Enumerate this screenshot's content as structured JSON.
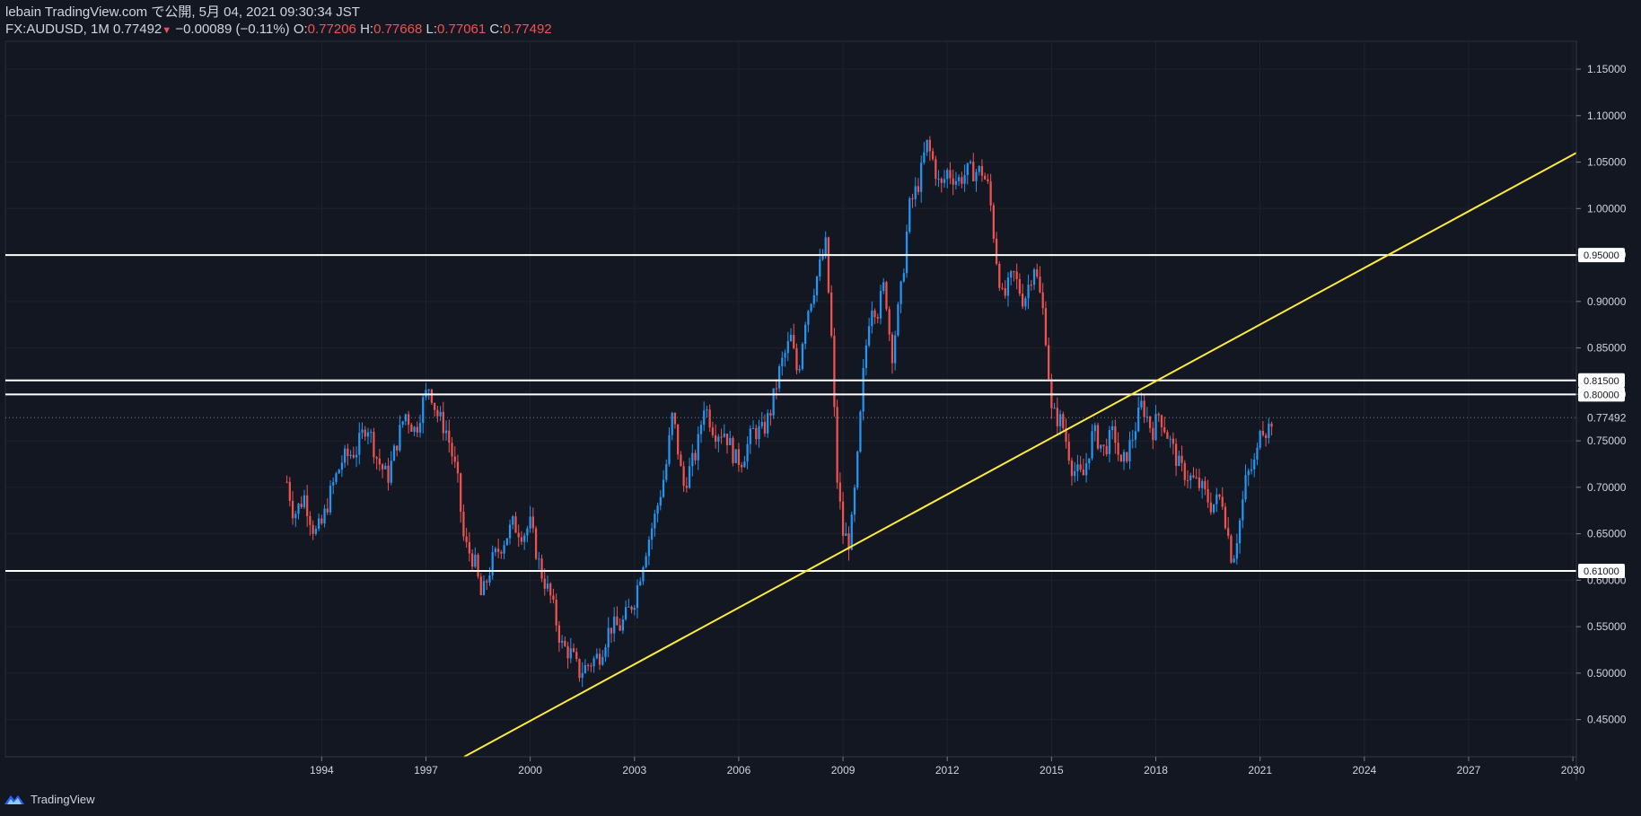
{
  "header": {
    "publish_line": "lebain TradingView.com で公開, 5月 04, 2021 09:30:34 JST",
    "symbol": "FX:AUDUSD, 1M",
    "last": "0.77492",
    "down_arrow": "▼",
    "change": "−0.00089 (−0.11%)",
    "open_label": "O:",
    "open": "0.77206",
    "high_label": "H:",
    "high": "0.77668",
    "low_label": "L:",
    "low": "0.77061",
    "close_label": "C:",
    "close": "0.77492"
  },
  "footer": {
    "brand": "TradingView",
    "logo_icon": "tradingview-logo-icon"
  },
  "colors": {
    "background": "#131722",
    "up": "#2196f3",
    "down": "#ef5350",
    "trendline": "#ffeb3b",
    "hline": "#ffffff",
    "text": "#d1d4dc"
  },
  "chart_data": {
    "type": "candlestick",
    "symbol": "FX:AUDUSD",
    "interval": "1M",
    "x_ticks": [
      "1994",
      "1997",
      "2000",
      "2003",
      "2006",
      "2009",
      "2012",
      "2015",
      "2018",
      "2021",
      "2024",
      "2027",
      "2030"
    ],
    "y_ticks": [
      "1.15000",
      "1.10000",
      "1.05000",
      "1.00000",
      "0.95000",
      "0.90000",
      "0.85000",
      "0.80000",
      "0.75000",
      "0.70000",
      "0.65000",
      "0.60000",
      "0.55000",
      "0.50000",
      "0.45000"
    ],
    "ylim": [
      0.41,
      1.18
    ],
    "xlim": [
      1984.9,
      2030.1
    ],
    "horizontal_levels": [
      {
        "value": 0.95,
        "label": "0.95000"
      },
      {
        "value": 0.815,
        "label": "0.81500"
      },
      {
        "value": 0.8,
        "label": "0.80000"
      },
      {
        "value": 0.61,
        "label": "0.61000"
      }
    ],
    "current_price": {
      "value": 0.77492,
      "label": "0.77492"
    },
    "trendline": {
      "from": {
        "year": 1998.1,
        "price": 0.41
      },
      "to": {
        "year": 2030.1,
        "price": 1.06
      }
    },
    "price_path": [
      [
        1993.0,
        0.706
      ],
      [
        1993.2,
        0.67
      ],
      [
        1993.5,
        0.69
      ],
      [
        1993.8,
        0.65
      ],
      [
        1994.0,
        0.66
      ],
      [
        1994.3,
        0.7
      ],
      [
        1994.6,
        0.73
      ],
      [
        1995.0,
        0.74
      ],
      [
        1995.3,
        0.77
      ],
      [
        1995.6,
        0.73
      ],
      [
        1995.9,
        0.71
      ],
      [
        1996.1,
        0.74
      ],
      [
        1996.4,
        0.78
      ],
      [
        1996.7,
        0.76
      ],
      [
        1996.9,
        0.79
      ],
      [
        1997.1,
        0.81
      ],
      [
        1997.3,
        0.78
      ],
      [
        1997.6,
        0.76
      ],
      [
        1997.9,
        0.71
      ],
      [
        1998.1,
        0.64
      ],
      [
        1998.4,
        0.62
      ],
      [
        1998.6,
        0.58
      ],
      [
        1998.9,
        0.62
      ],
      [
        1999.2,
        0.64
      ],
      [
        1999.5,
        0.66
      ],
      [
        1999.8,
        0.65
      ],
      [
        2000.0,
        0.66
      ],
      [
        2000.3,
        0.61
      ],
      [
        2000.6,
        0.58
      ],
      [
        2000.9,
        0.53
      ],
      [
        2001.2,
        0.52
      ],
      [
        2001.4,
        0.5
      ],
      [
        2001.7,
        0.51
      ],
      [
        2002.0,
        0.52
      ],
      [
        2002.3,
        0.55
      ],
      [
        2002.6,
        0.55
      ],
      [
        2003.0,
        0.58
      ],
      [
        2003.3,
        0.63
      ],
      [
        2003.6,
        0.67
      ],
      [
        2003.9,
        0.72
      ],
      [
        2004.1,
        0.78
      ],
      [
        2004.4,
        0.7
      ],
      [
        2004.8,
        0.74
      ],
      [
        2005.0,
        0.79
      ],
      [
        2005.3,
        0.76
      ],
      [
        2005.6,
        0.76
      ],
      [
        2005.9,
        0.73
      ],
      [
        2006.1,
        0.73
      ],
      [
        2006.4,
        0.76
      ],
      [
        2006.7,
        0.76
      ],
      [
        2006.9,
        0.78
      ],
      [
        2007.2,
        0.83
      ],
      [
        2007.5,
        0.86
      ],
      [
        2007.7,
        0.82
      ],
      [
        2007.9,
        0.88
      ],
      [
        2008.2,
        0.92
      ],
      [
        2008.5,
        0.96
      ],
      [
        2008.7,
        0.84
      ],
      [
        2008.8,
        0.72
      ],
      [
        2009.0,
        0.65
      ],
      [
        2009.2,
        0.64
      ],
      [
        2009.4,
        0.72
      ],
      [
        2009.6,
        0.83
      ],
      [
        2009.8,
        0.9
      ],
      [
        2010.0,
        0.89
      ],
      [
        2010.2,
        0.92
      ],
      [
        2010.4,
        0.84
      ],
      [
        2010.7,
        0.92
      ],
      [
        2010.9,
        1.0
      ],
      [
        2011.2,
        1.03
      ],
      [
        2011.4,
        1.07
      ],
      [
        2011.6,
        1.05
      ],
      [
        2011.8,
        1.02
      ],
      [
        2012.0,
        1.04
      ],
      [
        2012.3,
        1.03
      ],
      [
        2012.6,
        1.04
      ],
      [
        2013.0,
        1.04
      ],
      [
        2013.2,
        1.02
      ],
      [
        2013.4,
        0.95
      ],
      [
        2013.6,
        0.9
      ],
      [
        2013.9,
        0.93
      ],
      [
        2014.2,
        0.9
      ],
      [
        2014.5,
        0.94
      ],
      [
        2014.8,
        0.88
      ],
      [
        2015.0,
        0.78
      ],
      [
        2015.3,
        0.77
      ],
      [
        2015.6,
        0.72
      ],
      [
        2015.9,
        0.71
      ],
      [
        2016.2,
        0.76
      ],
      [
        2016.5,
        0.74
      ],
      [
        2016.8,
        0.76
      ],
      [
        2017.0,
        0.72
      ],
      [
        2017.3,
        0.75
      ],
      [
        2017.6,
        0.79
      ],
      [
        2017.9,
        0.76
      ],
      [
        2018.1,
        0.78
      ],
      [
        2018.4,
        0.75
      ],
      [
        2018.7,
        0.72
      ],
      [
        2019.0,
        0.71
      ],
      [
        2019.3,
        0.7
      ],
      [
        2019.6,
        0.68
      ],
      [
        2019.9,
        0.69
      ],
      [
        2020.2,
        0.62
      ],
      [
        2020.4,
        0.66
      ],
      [
        2020.6,
        0.71
      ],
      [
        2020.9,
        0.73
      ],
      [
        2021.0,
        0.77
      ],
      [
        2021.2,
        0.76
      ],
      [
        2021.35,
        0.775
      ]
    ]
  }
}
